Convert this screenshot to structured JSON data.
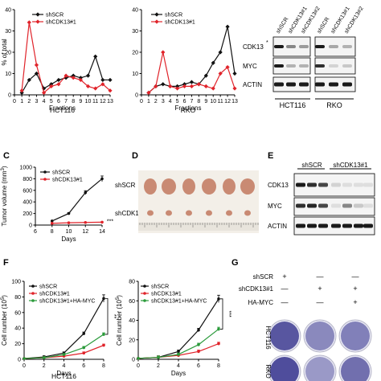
{
  "panel_letters": {
    "c": "C",
    "d": "D",
    "e": "E",
    "f": "F",
    "g": "G"
  },
  "colors": {
    "shSCR": "#111111",
    "shCDK13": "#e0232a",
    "rescue": "#2a9a3a",
    "blot_band": "#1a1a1a",
    "crystal_violet": "#3e3c92",
    "tumor": "#c98a73"
  },
  "panel_a_b_blot": {
    "lanes": [
      "shSCR",
      "shCDK13#1",
      "shCDK13#2",
      "shSCR",
      "shCDK13#1",
      "shCDK13#2"
    ],
    "rows": [
      "CDK13",
      "MYC",
      "ACTIN"
    ],
    "cell_lines": [
      "HCT116",
      "RKO"
    ],
    "asterisk": "*"
  },
  "panel_d": {
    "row_labels": [
      "shSCR",
      "shCDK13#1"
    ]
  },
  "panel_e_blot": {
    "groups": [
      "shSCR",
      "shCDK13#1"
    ],
    "rows": [
      "CDK13",
      "MYC",
      "ACTIN"
    ]
  },
  "panel_g": {
    "row_labels": [
      "shSCR",
      "shCDK13#1",
      "HA-MYC"
    ],
    "signs": [
      [
        "+",
        "—",
        "—"
      ],
      [
        "—",
        "+",
        "+"
      ],
      [
        "—",
        "—",
        "+"
      ]
    ],
    "cell_lines": [
      "HCT116",
      "RKO"
    ]
  },
  "chart_data": [
    {
      "id": "polysome-hct116",
      "type": "line",
      "xlabel": "Fractions",
      "ylabel": "% of total",
      "caption": "HCT116",
      "x": [
        1,
        2,
        3,
        4,
        5,
        6,
        7,
        8,
        9,
        10,
        11,
        12,
        13
      ],
      "xlim": [
        0,
        13
      ],
      "ylim": [
        0,
        40
      ],
      "yticks": [
        0,
        10,
        20,
        30,
        40
      ],
      "xticks": [
        0,
        1,
        2,
        3,
        4,
        5,
        6,
        7,
        8,
        9,
        10,
        11,
        12,
        13
      ],
      "legend_position": "top-right",
      "series": [
        {
          "name": "shSCR",
          "color": "#111111",
          "values": [
            1,
            7,
            10,
            3,
            5,
            7,
            8,
            9,
            8,
            9,
            18,
            7,
            7
          ]
        },
        {
          "name": "shCDK13#1",
          "color": "#e0232a",
          "values": [
            2,
            34,
            14,
            1,
            4,
            5,
            9,
            8,
            7,
            4,
            3,
            5,
            2
          ]
        }
      ]
    },
    {
      "id": "polysome-rko",
      "type": "line",
      "xlabel": "Fractions",
      "ylabel": "",
      "caption": "RKO",
      "x": [
        1,
        2,
        3,
        4,
        5,
        6,
        7,
        8,
        9,
        10,
        11,
        12,
        13
      ],
      "xlim": [
        0,
        13
      ],
      "ylim": [
        0,
        40
      ],
      "yticks": [
        0,
        10,
        20,
        30,
        40
      ],
      "xticks": [
        0,
        1,
        2,
        3,
        4,
        5,
        6,
        7,
        8,
        9,
        10,
        11,
        12,
        13
      ],
      "legend_position": "top-left",
      "series": [
        {
          "name": "shSCR",
          "color": "#111111",
          "values": [
            1,
            4,
            5,
            4,
            4,
            5,
            6,
            5,
            9,
            15,
            20,
            32,
            10
          ]
        },
        {
          "name": "shCDK13#1",
          "color": "#e0232a",
          "values": [
            1,
            4,
            20,
            4,
            3,
            4,
            4,
            5,
            4,
            3,
            10,
            13,
            3
          ]
        }
      ]
    },
    {
      "id": "tumor-volume",
      "type": "line",
      "xlabel": "Days",
      "ylabel": "Tumor volume (mm3)",
      "ylim": [
        0,
        1000
      ],
      "yticks": [
        0,
        200,
        400,
        600,
        800,
        1000
      ],
      "xlim": [
        6,
        14
      ],
      "xticks": [
        6,
        8,
        10,
        12,
        14
      ],
      "significance": "***",
      "legend_position": "top-left",
      "x": [
        8,
        10,
        12,
        14
      ],
      "series": [
        {
          "name": "shSCR",
          "color": "#111111",
          "values": [
            70,
            200,
            560,
            800
          ]
        },
        {
          "name": "shCDK13#1",
          "color": "#e0232a",
          "values": [
            30,
            40,
            45,
            50
          ]
        }
      ]
    },
    {
      "id": "proliferation-hct116",
      "type": "line",
      "xlabel": "Days",
      "ylabel": "Cell number (105)",
      "caption": "HCT116",
      "ylim": [
        0,
        100
      ],
      "yticks": [
        0,
        20,
        40,
        60,
        80,
        100
      ],
      "xlim": [
        0,
        8
      ],
      "xticks": [
        0,
        2,
        4,
        6,
        8
      ],
      "significance": "**",
      "legend_position": "top-left",
      "x": [
        0,
        2,
        4,
        6,
        8
      ],
      "series": [
        {
          "name": "shSCR",
          "color": "#111111",
          "values": [
            1,
            3,
            8,
            33,
            78
          ]
        },
        {
          "name": "shCDK13#1",
          "color": "#e0232a",
          "values": [
            1,
            2,
            4,
            8,
            18
          ]
        },
        {
          "name": "shCDK13#1+HA-MYC",
          "color": "#2a9a3a",
          "values": [
            1,
            2,
            6,
            15,
            32
          ]
        }
      ]
    },
    {
      "id": "proliferation-rko",
      "type": "line",
      "xlabel": "Days",
      "ylabel": "Cell number (105)",
      "ylim": [
        0,
        80
      ],
      "yticks": [
        0,
        20,
        40,
        60,
        80
      ],
      "xlim": [
        0,
        8
      ],
      "xticks": [
        0,
        2,
        4,
        6,
        8
      ],
      "significance": "***",
      "legend_position": "top-left",
      "x": [
        0,
        2,
        4,
        6,
        8
      ],
      "series": [
        {
          "name": "shSCR",
          "color": "#111111",
          "values": [
            1,
            2,
            8,
            30,
            62
          ]
        },
        {
          "name": "shCDK13#1",
          "color": "#e0232a",
          "values": [
            1,
            2,
            4,
            8,
            16
          ]
        },
        {
          "name": "shCDK13#1+HA-MYC",
          "color": "#2a9a3a",
          "values": [
            1,
            2,
            5,
            15,
            31
          ]
        }
      ]
    }
  ]
}
